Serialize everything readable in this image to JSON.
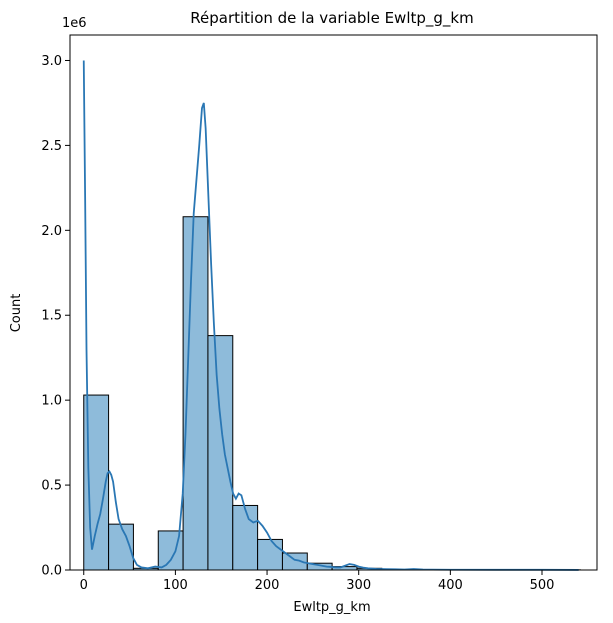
{
  "chart_data": {
    "type": "bar",
    "title": "Répartition de la variable Ewltp_g_km",
    "xlabel": "Ewltp_g_km",
    "ylabel": "Count",
    "y_offset_label": "1e6",
    "xlim": [
      -15,
      560
    ],
    "ylim": [
      0,
      3.15
    ],
    "grid": false,
    "x_ticks": [
      0,
      100,
      200,
      300,
      400,
      500
    ],
    "x_tick_labels": [
      "0",
      "100",
      "200",
      "300",
      "400",
      "500"
    ],
    "y_ticks": [
      0,
      0.5,
      1.0,
      1.5,
      2.0,
      2.5,
      3.0
    ],
    "y_tick_labels": [
      "0.0",
      "0.5",
      "1.0",
      "1.5",
      "2.0",
      "2.5",
      "3.0"
    ],
    "bin_width": 27.1,
    "bin_edges_start": 0,
    "bin_counts_millions": [
      1.03,
      0.27,
      0.01,
      0.23,
      2.08,
      1.38,
      0.38,
      0.18,
      0.1,
      0.04,
      0.02,
      0.01,
      0.002,
      0.001,
      0.001,
      0.001,
      0.001,
      0.001,
      0.001,
      0.001
    ],
    "bar_color": "#8ebbda",
    "bar_edge_color": "#000000",
    "kde_color": "#2a77b4",
    "kde": [
      [
        0,
        3.0
      ],
      [
        1.5,
        2.2
      ],
      [
        3,
        1.3
      ],
      [
        5,
        0.6
      ],
      [
        7,
        0.25
      ],
      [
        9,
        0.12
      ],
      [
        12,
        0.2
      ],
      [
        15,
        0.27
      ],
      [
        18,
        0.33
      ],
      [
        21,
        0.42
      ],
      [
        24,
        0.52
      ],
      [
        26,
        0.57
      ],
      [
        28,
        0.58
      ],
      [
        30,
        0.56
      ],
      [
        32,
        0.52
      ],
      [
        35,
        0.4
      ],
      [
        38,
        0.3
      ],
      [
        42,
        0.24
      ],
      [
        46,
        0.2
      ],
      [
        50,
        0.14
      ],
      [
        54,
        0.07
      ],
      [
        58,
        0.03
      ],
      [
        63,
        0.015
      ],
      [
        70,
        0.01
      ],
      [
        78,
        0.02
      ],
      [
        85,
        0.015
      ],
      [
        90,
        0.03
      ],
      [
        95,
        0.06
      ],
      [
        100,
        0.11
      ],
      [
        104,
        0.2
      ],
      [
        108,
        0.45
      ],
      [
        111,
        0.8
      ],
      [
        114,
        1.25
      ],
      [
        117,
        1.7
      ],
      [
        120,
        2.1
      ],
      [
        123,
        2.3
      ],
      [
        126,
        2.5
      ],
      [
        129,
        2.72
      ],
      [
        131,
        2.75
      ],
      [
        133,
        2.6
      ],
      [
        136,
        2.2
      ],
      [
        139,
        1.8
      ],
      [
        142,
        1.45
      ],
      [
        145,
        1.15
      ],
      [
        148,
        0.95
      ],
      [
        151,
        0.8
      ],
      [
        154,
        0.68
      ],
      [
        157,
        0.6
      ],
      [
        160,
        0.52
      ],
      [
        163,
        0.45
      ],
      [
        166,
        0.42
      ],
      [
        169,
        0.45
      ],
      [
        172,
        0.44
      ],
      [
        176,
        0.36
      ],
      [
        180,
        0.3
      ],
      [
        185,
        0.28
      ],
      [
        190,
        0.29
      ],
      [
        195,
        0.26
      ],
      [
        200,
        0.22
      ],
      [
        205,
        0.17
      ],
      [
        210,
        0.14
      ],
      [
        215,
        0.12
      ],
      [
        220,
        0.1
      ],
      [
        225,
        0.08
      ],
      [
        230,
        0.06
      ],
      [
        235,
        0.055
      ],
      [
        240,
        0.045
      ],
      [
        245,
        0.04
      ],
      [
        250,
        0.035
      ],
      [
        255,
        0.03
      ],
      [
        260,
        0.025
      ],
      [
        265,
        0.02
      ],
      [
        270,
        0.018
      ],
      [
        275,
        0.015
      ],
      [
        280,
        0.015
      ],
      [
        285,
        0.025
      ],
      [
        290,
        0.035
      ],
      [
        295,
        0.03
      ],
      [
        300,
        0.02
      ],
      [
        305,
        0.014
      ],
      [
        310,
        0.01
      ],
      [
        320,
        0.006
      ],
      [
        330,
        0.005
      ],
      [
        340,
        0.004
      ],
      [
        350,
        0.003
      ],
      [
        360,
        0.006
      ],
      [
        370,
        0.003
      ],
      [
        380,
        0.002
      ],
      [
        400,
        0.0015
      ],
      [
        450,
        0.001
      ],
      [
        500,
        0.001
      ],
      [
        540,
        0.0005
      ]
    ]
  }
}
